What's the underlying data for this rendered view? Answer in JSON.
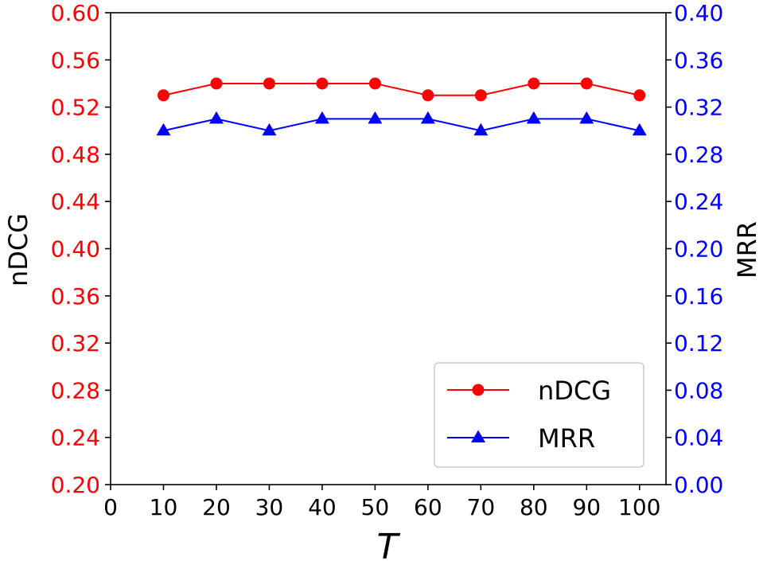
{
  "colors": {
    "left_axis": "#ff0000",
    "right_axis": "#0000ff",
    "ndcg_series": "#ff0000",
    "mrr_series": "#0000ff",
    "frame": "#000000"
  },
  "chart_data": {
    "type": "line",
    "title": "",
    "xlabel": "T",
    "ylabel_left": "nDCG",
    "ylabel_right": "MRR",
    "xlim": [
      0,
      105
    ],
    "ylim_left": [
      0.2,
      0.6
    ],
    "ylim_right": [
      0.0,
      0.4
    ],
    "x_ticks": [
      "0",
      "10",
      "20",
      "30",
      "40",
      "50",
      "60",
      "70",
      "80",
      "90",
      "100"
    ],
    "y_left_ticks": [
      "0.20",
      "0.24",
      "0.28",
      "0.32",
      "0.36",
      "0.40",
      "0.44",
      "0.48",
      "0.52",
      "0.56",
      "0.60"
    ],
    "y_right_ticks": [
      "0.00",
      "0.04",
      "0.08",
      "0.12",
      "0.16",
      "0.20",
      "0.24",
      "0.28",
      "0.32",
      "0.36",
      "0.40"
    ],
    "x": [
      10,
      20,
      30,
      40,
      50,
      60,
      70,
      80,
      90,
      100
    ],
    "series": [
      {
        "name": "nDCG",
        "axis": "left",
        "marker": "circle",
        "values": [
          0.53,
          0.54,
          0.54,
          0.54,
          0.54,
          0.53,
          0.53,
          0.54,
          0.54,
          0.53
        ]
      },
      {
        "name": "MRR",
        "axis": "right",
        "marker": "triangle",
        "values": [
          0.3,
          0.31,
          0.3,
          0.31,
          0.31,
          0.31,
          0.3,
          0.31,
          0.31,
          0.3
        ]
      }
    ],
    "legend": {
      "placement": "lower-right",
      "entries": [
        "nDCG",
        "MRR"
      ]
    },
    "grid": false
  }
}
